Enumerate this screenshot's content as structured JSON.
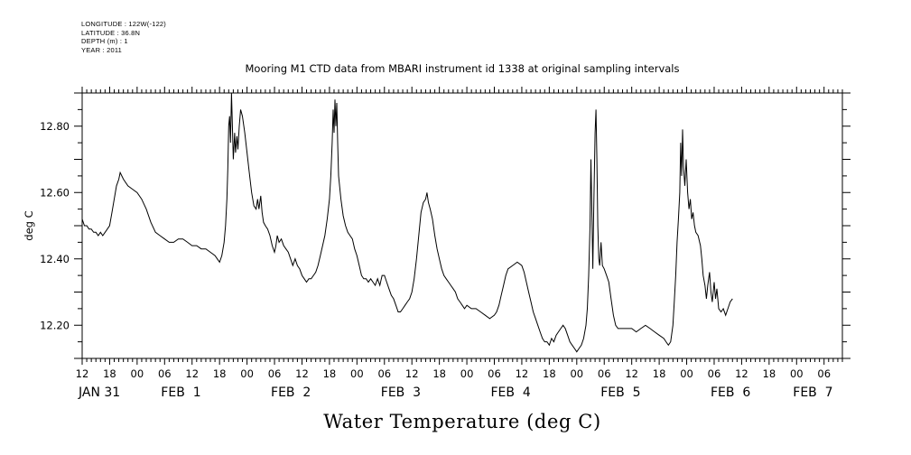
{
  "header": {
    "longitude": "LONGITUDE : 122W(-122)",
    "latitude": "LATITUDE : 36.8N",
    "depth": "DEPTH (m) : 1",
    "year": "YEAR : 2011"
  },
  "chart_data": {
    "type": "line",
    "title": "Mooring M1 CTD data from MBARI instrument id 1338 at original sampling intervals",
    "xlabel": "Water Temperature (deg C)",
    "ylabel": "deg C",
    "x_unit": "hours since 2011-01-31 12:00",
    "xlim": [
      0,
      166
    ],
    "ylim": [
      12.1,
      12.9
    ],
    "y_ticks": [
      "12.20",
      "12.40",
      "12.60",
      "12.80"
    ],
    "hour_ticks": [
      "12",
      "18",
      "00",
      "06",
      "12",
      "18",
      "00",
      "06",
      "12",
      "18",
      "00",
      "06",
      "12",
      "18",
      "00",
      "06",
      "12",
      "18",
      "00",
      "06",
      "12",
      "18",
      "00",
      "06",
      "12",
      "18",
      "00",
      "06"
    ],
    "day_labels": [
      {
        "label": "JAN 31",
        "x": 0
      },
      {
        "label": "FEB  1",
        "x": 18
      },
      {
        "label": "FEB  2",
        "x": 42
      },
      {
        "label": "FEB  3",
        "x": 66
      },
      {
        "label": "FEB  4",
        "x": 90
      },
      {
        "label": "FEB  5",
        "x": 114
      },
      {
        "label": "FEB  6",
        "x": 138
      },
      {
        "label": "FEB  7",
        "x": 156
      }
    ],
    "grid": false,
    "series": [
      {
        "points": [
          [
            0,
            12.52
          ],
          [
            0.5,
            12.5
          ],
          [
            1,
            12.5
          ],
          [
            1.5,
            12.49
          ],
          [
            2,
            12.49
          ],
          [
            2.5,
            12.48
          ],
          [
            3,
            12.48
          ],
          [
            3.5,
            12.47
          ],
          [
            4,
            12.48
          ],
          [
            4.5,
            12.47
          ],
          [
            5,
            12.48
          ],
          [
            5.5,
            12.49
          ],
          [
            6,
            12.5
          ],
          [
            6.5,
            12.54
          ],
          [
            7,
            12.58
          ],
          [
            7.5,
            12.62
          ],
          [
            8,
            12.64
          ],
          [
            8.3,
            12.66
          ],
          [
            9,
            12.64
          ],
          [
            10,
            12.62
          ],
          [
            11,
            12.61
          ],
          [
            12,
            12.6
          ],
          [
            13,
            12.58
          ],
          [
            14,
            12.55
          ],
          [
            15,
            12.51
          ],
          [
            16,
            12.48
          ],
          [
            17,
            12.47
          ],
          [
            18,
            12.46
          ],
          [
            19,
            12.45
          ],
          [
            20,
            12.45
          ],
          [
            21,
            12.46
          ],
          [
            22,
            12.46
          ],
          [
            23,
            12.45
          ],
          [
            24,
            12.44
          ],
          [
            25,
            12.44
          ],
          [
            26,
            12.43
          ],
          [
            27,
            12.43
          ],
          [
            28,
            12.42
          ],
          [
            29,
            12.41
          ],
          [
            29.5,
            12.4
          ],
          [
            30,
            12.39
          ],
          [
            30.5,
            12.41
          ],
          [
            31,
            12.45
          ],
          [
            31.3,
            12.5
          ],
          [
            31.6,
            12.58
          ],
          [
            31.8,
            12.67
          ],
          [
            32,
            12.8
          ],
          [
            32.2,
            12.83
          ],
          [
            32.4,
            12.75
          ],
          [
            32.6,
            12.9
          ],
          [
            32.8,
            12.8
          ],
          [
            33,
            12.7
          ],
          [
            33.3,
            12.78
          ],
          [
            33.5,
            12.72
          ],
          [
            33.8,
            12.77
          ],
          [
            34,
            12.73
          ],
          [
            34.3,
            12.8
          ],
          [
            34.6,
            12.85
          ],
          [
            35,
            12.83
          ],
          [
            35.5,
            12.78
          ],
          [
            36,
            12.72
          ],
          [
            36.5,
            12.66
          ],
          [
            37,
            12.6
          ],
          [
            37.5,
            12.56
          ],
          [
            38,
            12.55
          ],
          [
            38.3,
            12.58
          ],
          [
            38.6,
            12.55
          ],
          [
            39,
            12.59
          ],
          [
            39.3,
            12.54
          ],
          [
            39.6,
            12.51
          ],
          [
            40,
            12.5
          ],
          [
            40.5,
            12.49
          ],
          [
            41,
            12.47
          ],
          [
            41.5,
            12.44
          ],
          [
            42,
            12.42
          ],
          [
            42.3,
            12.44
          ],
          [
            42.6,
            12.47
          ],
          [
            43,
            12.45
          ],
          [
            43.5,
            12.46
          ],
          [
            44,
            12.44
          ],
          [
            44.5,
            12.43
          ],
          [
            45,
            12.42
          ],
          [
            45.5,
            12.4
          ],
          [
            46,
            12.38
          ],
          [
            46.5,
            12.4
          ],
          [
            47,
            12.38
          ],
          [
            47.5,
            12.37
          ],
          [
            48,
            12.35
          ],
          [
            48.5,
            12.34
          ],
          [
            49,
            12.33
          ],
          [
            49.5,
            12.34
          ],
          [
            50,
            12.34
          ],
          [
            50.5,
            12.35
          ],
          [
            51,
            12.36
          ],
          [
            51.5,
            12.38
          ],
          [
            52,
            12.41
          ],
          [
            52.5,
            12.44
          ],
          [
            53,
            12.47
          ],
          [
            53.5,
            12.52
          ],
          [
            54,
            12.58
          ],
          [
            54.3,
            12.65
          ],
          [
            54.6,
            12.75
          ],
          [
            54.8,
            12.85
          ],
          [
            55,
            12.78
          ],
          [
            55.2,
            12.88
          ],
          [
            55.4,
            12.8
          ],
          [
            55.6,
            12.87
          ],
          [
            55.8,
            12.75
          ],
          [
            56,
            12.65
          ],
          [
            56.5,
            12.58
          ],
          [
            57,
            12.53
          ],
          [
            57.5,
            12.5
          ],
          [
            58,
            12.48
          ],
          [
            58.5,
            12.47
          ],
          [
            59,
            12.46
          ],
          [
            59.5,
            12.43
          ],
          [
            60,
            12.41
          ],
          [
            60.5,
            12.38
          ],
          [
            61,
            12.35
          ],
          [
            61.5,
            12.34
          ],
          [
            62,
            12.34
          ],
          [
            62.5,
            12.33
          ],
          [
            63,
            12.34
          ],
          [
            63.5,
            12.33
          ],
          [
            64,
            12.32
          ],
          [
            64.5,
            12.34
          ],
          [
            65,
            12.32
          ],
          [
            65.5,
            12.35
          ],
          [
            66,
            12.35
          ],
          [
            66.5,
            12.33
          ],
          [
            67,
            12.31
          ],
          [
            67.5,
            12.29
          ],
          [
            68,
            12.28
          ],
          [
            68.5,
            12.26
          ],
          [
            69,
            12.24
          ],
          [
            69.5,
            12.24
          ],
          [
            70,
            12.25
          ],
          [
            70.5,
            12.26
          ],
          [
            71,
            12.27
          ],
          [
            71.5,
            12.28
          ],
          [
            72,
            12.3
          ],
          [
            72.5,
            12.34
          ],
          [
            73,
            12.4
          ],
          [
            73.5,
            12.47
          ],
          [
            74,
            12.54
          ],
          [
            74.5,
            12.57
          ],
          [
            75,
            12.58
          ],
          [
            75.3,
            12.6
          ],
          [
            75.6,
            12.57
          ],
          [
            76,
            12.55
          ],
          [
            76.5,
            12.52
          ],
          [
            77,
            12.47
          ],
          [
            77.5,
            12.43
          ],
          [
            78,
            12.4
          ],
          [
            78.5,
            12.37
          ],
          [
            79,
            12.35
          ],
          [
            79.5,
            12.34
          ],
          [
            80,
            12.33
          ],
          [
            80.5,
            12.32
          ],
          [
            81,
            12.31
          ],
          [
            81.5,
            12.3
          ],
          [
            82,
            12.28
          ],
          [
            82.5,
            12.27
          ],
          [
            83,
            12.26
          ],
          [
            83.5,
            12.25
          ],
          [
            84,
            12.26
          ],
          [
            85,
            12.25
          ],
          [
            86,
            12.25
          ],
          [
            87,
            12.24
          ],
          [
            88,
            12.23
          ],
          [
            89,
            12.22
          ],
          [
            90,
            12.23
          ],
          [
            90.5,
            12.24
          ],
          [
            91,
            12.26
          ],
          [
            91.5,
            12.29
          ],
          [
            92,
            12.32
          ],
          [
            92.5,
            12.35
          ],
          [
            93,
            12.37
          ],
          [
            94,
            12.38
          ],
          [
            95,
            12.39
          ],
          [
            96,
            12.38
          ],
          [
            96.5,
            12.36
          ],
          [
            97,
            12.33
          ],
          [
            97.5,
            12.3
          ],
          [
            98,
            12.27
          ],
          [
            98.5,
            12.24
          ],
          [
            99,
            12.22
          ],
          [
            99.5,
            12.2
          ],
          [
            100,
            12.18
          ],
          [
            100.5,
            12.16
          ],
          [
            101,
            12.15
          ],
          [
            101.5,
            12.15
          ],
          [
            102,
            12.14
          ],
          [
            102.5,
            12.16
          ],
          [
            103,
            12.15
          ],
          [
            103.5,
            12.17
          ],
          [
            104,
            12.18
          ],
          [
            104.5,
            12.19
          ],
          [
            105,
            12.2
          ],
          [
            105.5,
            12.19
          ],
          [
            106,
            12.17
          ],
          [
            106.5,
            12.15
          ],
          [
            107,
            12.14
          ],
          [
            107.5,
            12.13
          ],
          [
            108,
            12.12
          ],
          [
            108.5,
            12.13
          ],
          [
            109,
            12.14
          ],
          [
            109.5,
            12.16
          ],
          [
            110,
            12.2
          ],
          [
            110.3,
            12.25
          ],
          [
            110.6,
            12.35
          ],
          [
            110.9,
            12.5
          ],
          [
            111.1,
            12.7
          ],
          [
            111.3,
            12.55
          ],
          [
            111.5,
            12.37
          ],
          [
            111.7,
            12.55
          ],
          [
            112,
            12.78
          ],
          [
            112.2,
            12.85
          ],
          [
            112.4,
            12.7
          ],
          [
            112.6,
            12.5
          ],
          [
            112.8,
            12.4
          ],
          [
            113,
            12.38
          ],
          [
            113.3,
            12.45
          ],
          [
            113.6,
            12.38
          ],
          [
            114,
            12.37
          ],
          [
            114.5,
            12.35
          ],
          [
            115,
            12.33
          ],
          [
            115.5,
            12.28
          ],
          [
            116,
            12.23
          ],
          [
            116.5,
            12.2
          ],
          [
            117,
            12.19
          ],
          [
            118,
            12.19
          ],
          [
            119,
            12.19
          ],
          [
            120,
            12.19
          ],
          [
            121,
            12.18
          ],
          [
            122,
            12.19
          ],
          [
            123,
            12.2
          ],
          [
            124,
            12.19
          ],
          [
            125,
            12.18
          ],
          [
            126,
            12.17
          ],
          [
            127,
            12.16
          ],
          [
            127.5,
            12.15
          ],
          [
            128,
            12.14
          ],
          [
            128.5,
            12.15
          ],
          [
            129,
            12.2
          ],
          [
            129.3,
            12.27
          ],
          [
            129.6,
            12.35
          ],
          [
            129.9,
            12.45
          ],
          [
            130.2,
            12.52
          ],
          [
            130.5,
            12.6
          ],
          [
            130.7,
            12.75
          ],
          [
            130.9,
            12.65
          ],
          [
            131.1,
            12.79
          ],
          [
            131.3,
            12.68
          ],
          [
            131.6,
            12.62
          ],
          [
            131.9,
            12.7
          ],
          [
            132.2,
            12.6
          ],
          [
            132.5,
            12.55
          ],
          [
            132.8,
            12.58
          ],
          [
            133.1,
            12.52
          ],
          [
            133.4,
            12.54
          ],
          [
            133.7,
            12.5
          ],
          [
            134,
            12.48
          ],
          [
            134.5,
            12.47
          ],
          [
            135,
            12.44
          ],
          [
            135.3,
            12.4
          ],
          [
            135.6,
            12.35
          ],
          [
            136,
            12.32
          ],
          [
            136.3,
            12.28
          ],
          [
            136.6,
            12.32
          ],
          [
            137,
            12.36
          ],
          [
            137.3,
            12.3
          ],
          [
            137.6,
            12.27
          ],
          [
            138,
            12.33
          ],
          [
            138.3,
            12.28
          ],
          [
            138.6,
            12.31
          ],
          [
            139,
            12.25
          ],
          [
            139.5,
            12.24
          ],
          [
            140,
            12.25
          ],
          [
            140.5,
            12.23
          ],
          [
            141,
            12.25
          ],
          [
            141.5,
            12.27
          ],
          [
            142,
            12.28
          ]
        ]
      }
    ]
  }
}
